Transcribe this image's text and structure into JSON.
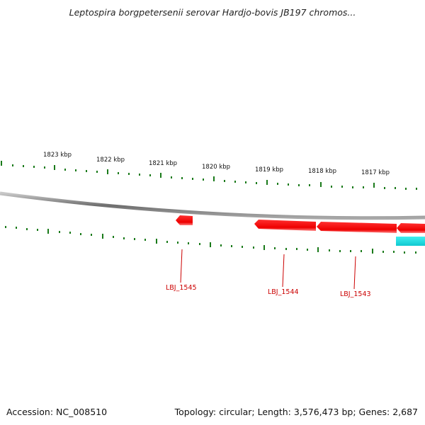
{
  "title": "Leptospira borgpetersenii serovar Hardjo-bovis JB197 chromos...",
  "footer": {
    "accession": "Accession: NC_008510",
    "summary": "Topology: circular; Length: 3,576,473 bp; Genes: 2,687"
  },
  "scale": {
    "tick_labels": [
      "1823 kbp",
      "1822 kbp",
      "1821 kbp",
      "1820 kbp",
      "1819 kbp",
      "1818 kbp",
      "1817 kbp"
    ]
  },
  "genes": [
    {
      "label": "LBJ_1545"
    },
    {
      "label": "LBJ_1544"
    },
    {
      "label": "LBJ_1543"
    }
  ],
  "colors": {
    "backbone": "#808080",
    "tick": "#1a7a1a",
    "gene": "#ee0000",
    "gene_label": "#cc0000",
    "other_feature": "#22dddd"
  }
}
